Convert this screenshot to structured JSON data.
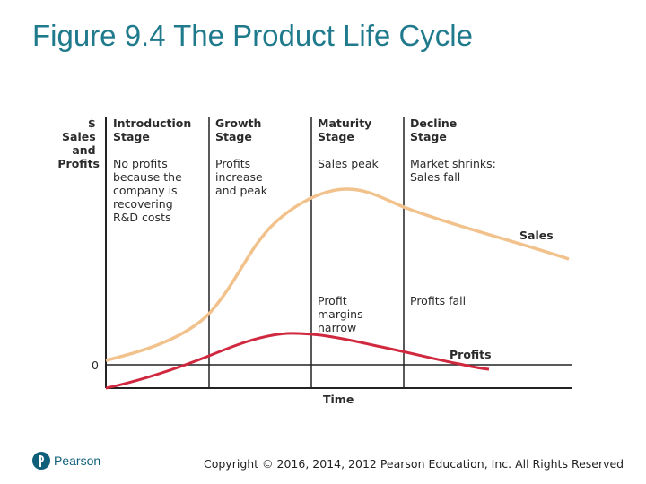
{
  "slide": {
    "title": "Figure 9.4 The Product Life Cycle",
    "copyright": "Copyright © 2016, 2014, 2012 Pearson Education, Inc. All Rights Reserved",
    "logo_text": "Pearson",
    "logo_icon": "pearson-logo-icon"
  },
  "diagram": {
    "y_axis_label": [
      "$",
      "Sales",
      "and",
      "Profits"
    ],
    "x_axis_label": "Time",
    "zero_label": "0",
    "stages": [
      {
        "title": [
          "Introduction",
          "Stage"
        ],
        "description": [
          "No profits",
          "because the",
          "company is",
          "recovering",
          "R&D costs"
        ],
        "note": []
      },
      {
        "title": [
          "Growth",
          "Stage"
        ],
        "description": [
          "Profits",
          "increase",
          "and peak"
        ],
        "note": []
      },
      {
        "title": [
          "Maturity",
          "Stage"
        ],
        "description": [
          "Sales peak"
        ],
        "note": [
          "Profit",
          "margins",
          "narrow"
        ]
      },
      {
        "title": [
          "Decline",
          "Stage"
        ],
        "description": [
          "Market shrinks:",
          "Sales fall"
        ],
        "note": [
          "Profits fall"
        ]
      }
    ],
    "curves": {
      "sales_label": "Sales",
      "profits_label": "Profits"
    },
    "colors": {
      "sales": "#f2c28d",
      "profits": "#d0283f",
      "axis": "#222222",
      "title": "#1f7a8c"
    }
  }
}
